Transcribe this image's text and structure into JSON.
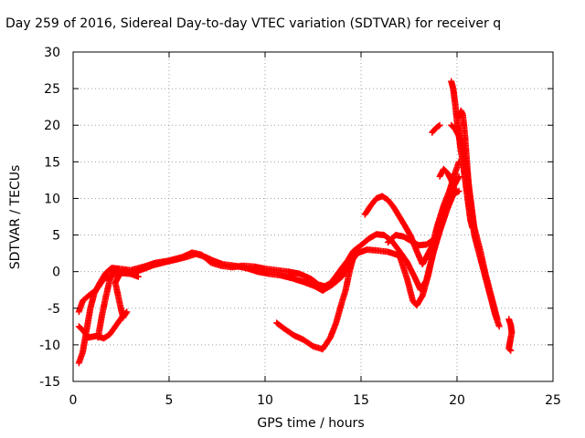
{
  "chart_data": {
    "type": "scatter",
    "title": "Day 259 of 2016, Sidereal Day-to-day VTEC variation (SDTVAR) for receiver q",
    "xlabel": "GPS time / hours",
    "ylabel": "SDTVAR / TECUs",
    "xlim": [
      0,
      25
    ],
    "ylim": [
      -15,
      30
    ],
    "xticks": [
      0,
      5,
      10,
      15,
      20,
      25
    ],
    "yticks": [
      -15,
      -10,
      -5,
      0,
      5,
      10,
      15,
      20,
      25,
      30
    ],
    "grid": true,
    "marker": "+",
    "color": "#ff0000",
    "series": [
      {
        "values": [
          [
            0.3,
            -12.5
          ],
          [
            0.5,
            -11
          ],
          [
            0.7,
            -8
          ],
          [
            0.9,
            -5
          ],
          [
            1.1,
            -3
          ],
          [
            1.4,
            -1.5
          ],
          [
            1.7,
            -0.2
          ],
          [
            2.0,
            0.5
          ],
          [
            2.4,
            0.4
          ],
          [
            3.0,
            0.2
          ],
          [
            3.7,
            0.7
          ],
          [
            4.3,
            1.2
          ],
          [
            5.0,
            1.5
          ],
          [
            5.7,
            2.0
          ],
          [
            6.2,
            2.6
          ],
          [
            6.7,
            2.3
          ],
          [
            7.2,
            1.2
          ],
          [
            7.7,
            0.8
          ],
          [
            8.3,
            0.6
          ],
          [
            8.8,
            0.8
          ],
          [
            9.4,
            0.7
          ],
          [
            10.0,
            0.4
          ],
          [
            10.6,
            0.2
          ],
          [
            11.2,
            0.0
          ],
          [
            11.8,
            -0.3
          ],
          [
            12.4,
            -1.0
          ],
          [
            12.8,
            -1.8
          ],
          [
            13.1,
            -2.0
          ],
          [
            13.4,
            -1.6
          ],
          [
            13.7,
            -0.6
          ],
          [
            14.0,
            0.5
          ],
          [
            14.3,
            1.5
          ],
          [
            14.6,
            2.8
          ],
          [
            15.0,
            3.6
          ],
          [
            15.4,
            4.5
          ],
          [
            15.8,
            5.1
          ],
          [
            16.2,
            5.0
          ],
          [
            16.6,
            4.2
          ],
          [
            17.0,
            2.8
          ],
          [
            17.4,
            1.3
          ],
          [
            17.8,
            -0.8
          ],
          [
            18.1,
            -2.5
          ],
          [
            18.4,
            -1.2
          ],
          [
            18.7,
            2.0
          ],
          [
            19.1,
            5.5
          ],
          [
            19.5,
            8.6
          ],
          [
            19.8,
            10.5
          ],
          [
            20.1,
            11.0
          ]
        ]
      },
      {
        "values": [
          [
            0.3,
            -5.5
          ],
          [
            0.5,
            -4.0
          ],
          [
            0.8,
            -3.3
          ],
          [
            1.2,
            -2.5
          ],
          [
            1.6,
            -1.0
          ],
          [
            2.0,
            -0.5
          ],
          [
            2.5,
            -0.2
          ],
          [
            3.0,
            -0.3
          ],
          [
            3.6,
            0.3
          ],
          [
            4.2,
            0.9
          ],
          [
            4.8,
            1.3
          ],
          [
            5.3,
            1.6
          ],
          [
            5.9,
            2.0
          ],
          [
            6.4,
            2.4
          ],
          [
            6.9,
            2.0
          ],
          [
            7.3,
            1.5
          ],
          [
            7.8,
            1.0
          ],
          [
            8.4,
            0.8
          ],
          [
            9.0,
            0.5
          ],
          [
            9.6,
            0.0
          ],
          [
            10.2,
            -0.3
          ],
          [
            10.8,
            -0.5
          ],
          [
            11.4,
            -0.9
          ],
          [
            12.0,
            -1.4
          ],
          [
            12.6,
            -2.0
          ],
          [
            13.0,
            -2.6
          ],
          [
            13.5,
            -1.8
          ],
          [
            14.0,
            -0.7
          ],
          [
            14.4,
            1.0
          ],
          [
            14.8,
            2.5
          ],
          [
            15.3,
            3.0
          ],
          [
            15.8,
            2.9
          ],
          [
            16.4,
            2.7
          ],
          [
            17.0,
            2.2
          ],
          [
            17.4,
            -1.0
          ],
          [
            17.7,
            -4.0
          ],
          [
            17.9,
            -4.6
          ],
          [
            18.2,
            -3.3
          ],
          [
            18.5,
            -0.5
          ],
          [
            18.8,
            3.0
          ],
          [
            19.1,
            6.0
          ],
          [
            19.5,
            9.5
          ],
          [
            19.8,
            11.5
          ],
          [
            20.1,
            13.0
          ]
        ]
      },
      {
        "values": [
          [
            0.3,
            -7.5
          ],
          [
            0.5,
            -8.0
          ],
          [
            0.8,
            -9.0
          ],
          [
            1.2,
            -8.8
          ],
          [
            1.6,
            -9.1
          ],
          [
            1.9,
            -8.6
          ],
          [
            2.2,
            -7.5
          ],
          [
            2.6,
            -6.0
          ],
          [
            2.8,
            -5.5
          ],
          [
            2.6,
            -6.3
          ],
          [
            2.4,
            -4.0
          ],
          [
            2.2,
            -1.5
          ],
          [
            2.4,
            -0.5
          ],
          [
            2.7,
            0.2
          ]
        ]
      },
      {
        "values": [
          [
            1.3,
            -9.0
          ],
          [
            1.5,
            -6.0
          ],
          [
            1.7,
            -3.5
          ],
          [
            1.9,
            -1.2
          ],
          [
            2.1,
            0.0
          ],
          [
            2.5,
            0.0
          ],
          [
            3.0,
            -0.3
          ],
          [
            3.4,
            -0.7
          ]
        ]
      },
      {
        "values": [
          [
            10.6,
            -7.0
          ],
          [
            11.0,
            -7.8
          ],
          [
            11.5,
            -8.7
          ],
          [
            12.0,
            -9.3
          ],
          [
            12.5,
            -10.2
          ],
          [
            13.0,
            -10.6
          ],
          [
            13.4,
            -9.0
          ],
          [
            13.7,
            -7.0
          ],
          [
            14.0,
            -4.2
          ],
          [
            14.2,
            -2.5
          ],
          [
            14.4,
            0.0
          ],
          [
            14.6,
            2.0
          ],
          [
            14.8,
            3.2
          ]
        ]
      },
      {
        "values": [
          [
            15.2,
            7.8
          ],
          [
            15.5,
            9.0
          ],
          [
            15.8,
            10.0
          ],
          [
            16.1,
            10.3
          ],
          [
            16.4,
            9.8
          ],
          [
            16.7,
            8.8
          ],
          [
            17.0,
            7.5
          ],
          [
            17.3,
            6.2
          ],
          [
            17.6,
            4.8
          ],
          [
            17.9,
            2.8
          ],
          [
            18.2,
            1.0
          ],
          [
            18.4,
            2.0
          ],
          [
            18.7,
            3.5
          ],
          [
            19.0,
            6.5
          ],
          [
            19.3,
            9.0
          ],
          [
            19.6,
            11.0
          ],
          [
            19.9,
            13.5
          ],
          [
            20.1,
            15.0
          ]
        ]
      },
      {
        "values": [
          [
            16.4,
            4.0
          ],
          [
            16.8,
            5.0
          ],
          [
            17.2,
            4.8
          ],
          [
            17.6,
            4.2
          ],
          [
            18.0,
            3.6
          ],
          [
            18.4,
            3.7
          ],
          [
            18.8,
            4.4
          ]
        ]
      },
      {
        "values": [
          [
            19.1,
            13.0
          ],
          [
            19.3,
            14.0
          ],
          [
            19.5,
            13.5
          ],
          [
            19.7,
            12.5
          ],
          [
            19.9,
            11.0
          ]
        ]
      },
      {
        "values": [
          [
            19.7,
            26.0
          ],
          [
            19.8,
            25.0
          ],
          [
            19.9,
            23.0
          ],
          [
            20.0,
            20.5
          ],
          [
            20.1,
            18.5
          ],
          [
            20.2,
            16.5
          ],
          [
            20.3,
            15.0
          ],
          [
            20.4,
            13.0
          ],
          [
            20.5,
            11.0
          ],
          [
            20.6,
            9.0
          ],
          [
            20.7,
            7.0
          ],
          [
            20.8,
            6.0
          ]
        ]
      },
      {
        "values": [
          [
            20.1,
            21.0
          ],
          [
            20.2,
            22.0
          ],
          [
            20.3,
            21.5
          ],
          [
            20.4,
            19.0
          ],
          [
            20.5,
            15.5
          ],
          [
            20.6,
            12.0
          ],
          [
            20.7,
            9.0
          ],
          [
            20.8,
            7.0
          ],
          [
            20.9,
            5.0
          ],
          [
            21.0,
            4.0
          ],
          [
            21.2,
            2.0
          ],
          [
            21.4,
            0.0
          ],
          [
            21.6,
            -2.0
          ],
          [
            21.8,
            -4.0
          ],
          [
            22.0,
            -6.0
          ],
          [
            22.2,
            -7.5
          ]
        ]
      },
      {
        "values": [
          [
            19.7,
            20.0
          ],
          [
            19.9,
            19.5
          ],
          [
            20.1,
            18.5
          ],
          [
            20.3,
            17.0
          ],
          [
            20.5,
            14.0
          ],
          [
            20.7,
            10.0
          ],
          [
            20.9,
            6.0
          ],
          [
            21.2,
            3.0
          ],
          [
            21.5,
            -0.5
          ],
          [
            21.8,
            -3.5
          ],
          [
            22.1,
            -6.5
          ]
        ]
      },
      {
        "values": [
          [
            18.7,
            19.0
          ],
          [
            18.9,
            19.6
          ],
          [
            19.1,
            20.0
          ]
        ]
      },
      {
        "values": [
          [
            22.7,
            -6.5
          ],
          [
            22.8,
            -7.3
          ],
          [
            22.85,
            -8.3
          ],
          [
            22.7,
            -10.5
          ],
          [
            22.8,
            -10.8
          ]
        ]
      }
    ]
  }
}
